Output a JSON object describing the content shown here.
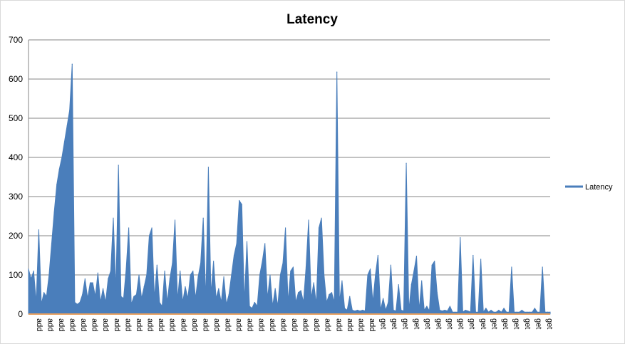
{
  "chart_data": {
    "type": "area",
    "title": "Latency",
    "xlabel": "",
    "ylabel": "",
    "ylim": [
      0,
      700
    ],
    "yticks": [
      0,
      100,
      200,
      300,
      400,
      500,
      600,
      700
    ],
    "grid": true,
    "legend_position": "right",
    "x_tick_labels": [
      "add",
      "add",
      "add",
      "add",
      "add",
      "add",
      "add",
      "add",
      "add",
      "add",
      "add",
      "add",
      "add",
      "add",
      "add",
      "add",
      "add",
      "add",
      "add",
      "add",
      "add",
      "add",
      "add",
      "add",
      "add",
      "add",
      "add",
      "add",
      "add",
      "add",
      "add",
      "get",
      "get",
      "get",
      "get",
      "get",
      "get",
      "get",
      "get",
      "get",
      "get",
      "get",
      "get",
      "get",
      "get",
      "get",
      "get"
    ],
    "series": [
      {
        "name": "Latency",
        "color": "#4a7ebb",
        "points": [
          [
            0,
            115
          ],
          [
            1,
            90
          ],
          [
            2,
            110
          ],
          [
            3,
            30
          ],
          [
            4,
            215
          ],
          [
            5,
            25
          ],
          [
            6,
            55
          ],
          [
            7,
            45
          ],
          [
            8,
            100
          ],
          [
            9,
            180
          ],
          [
            10,
            260
          ],
          [
            11,
            330
          ],
          [
            12,
            370
          ],
          [
            13,
            400
          ],
          [
            14,
            440
          ],
          [
            15,
            480
          ],
          [
            16,
            520
          ],
          [
            17,
            638
          ],
          [
            18,
            30
          ],
          [
            19,
            25
          ],
          [
            20,
            30
          ],
          [
            21,
            50
          ],
          [
            22,
            90
          ],
          [
            23,
            40
          ],
          [
            24,
            80
          ],
          [
            25,
            80
          ],
          [
            26,
            45
          ],
          [
            27,
            105
          ],
          [
            28,
            30
          ],
          [
            29,
            65
          ],
          [
            30,
            30
          ],
          [
            31,
            90
          ],
          [
            32,
            110
          ],
          [
            33,
            245
          ],
          [
            34,
            60
          ],
          [
            35,
            380
          ],
          [
            36,
            45
          ],
          [
            37,
            40
          ],
          [
            38,
            115
          ],
          [
            39,
            220
          ],
          [
            40,
            25
          ],
          [
            41,
            45
          ],
          [
            42,
            50
          ],
          [
            43,
            100
          ],
          [
            44,
            40
          ],
          [
            45,
            70
          ],
          [
            46,
            100
          ],
          [
            47,
            200
          ],
          [
            48,
            220
          ],
          [
            49,
            40
          ],
          [
            50,
            125
          ],
          [
            51,
            30
          ],
          [
            52,
            20
          ],
          [
            53,
            110
          ],
          [
            54,
            30
          ],
          [
            55,
            90
          ],
          [
            56,
            130
          ],
          [
            57,
            240
          ],
          [
            58,
            35
          ],
          [
            59,
            110
          ],
          [
            60,
            30
          ],
          [
            61,
            70
          ],
          [
            62,
            40
          ],
          [
            63,
            100
          ],
          [
            64,
            110
          ],
          [
            65,
            40
          ],
          [
            66,
            95
          ],
          [
            67,
            130
          ],
          [
            68,
            245
          ],
          [
            69,
            35
          ],
          [
            70,
            375
          ],
          [
            71,
            50
          ],
          [
            72,
            135
          ],
          [
            73,
            40
          ],
          [
            74,
            65
          ],
          [
            75,
            30
          ],
          [
            76,
            95
          ],
          [
            77,
            25
          ],
          [
            78,
            50
          ],
          [
            79,
            100
          ],
          [
            80,
            150
          ],
          [
            81,
            180
          ],
          [
            82,
            290
          ],
          [
            83,
            280
          ],
          [
            84,
            30
          ],
          [
            85,
            185
          ],
          [
            86,
            20
          ],
          [
            87,
            15
          ],
          [
            88,
            30
          ],
          [
            89,
            20
          ],
          [
            90,
            100
          ],
          [
            91,
            135
          ],
          [
            92,
            180
          ],
          [
            93,
            40
          ],
          [
            94,
            100
          ],
          [
            95,
            20
          ],
          [
            96,
            65
          ],
          [
            97,
            20
          ],
          [
            98,
            100
          ],
          [
            99,
            130
          ],
          [
            100,
            220
          ],
          [
            101,
            30
          ],
          [
            102,
            110
          ],
          [
            103,
            120
          ],
          [
            104,
            30
          ],
          [
            105,
            55
          ],
          [
            106,
            60
          ],
          [
            107,
            30
          ],
          [
            108,
            120
          ],
          [
            109,
            240
          ],
          [
            110,
            40
          ],
          [
            111,
            80
          ],
          [
            112,
            25
          ],
          [
            113,
            220
          ],
          [
            114,
            245
          ],
          [
            115,
            100
          ],
          [
            116,
            30
          ],
          [
            117,
            50
          ],
          [
            118,
            55
          ],
          [
            119,
            30
          ],
          [
            120,
            618
          ],
          [
            121,
            30
          ],
          [
            122,
            85
          ],
          [
            123,
            15
          ],
          [
            124,
            10
          ],
          [
            125,
            45
          ],
          [
            126,
            10
          ],
          [
            127,
            8
          ],
          [
            128,
            10
          ],
          [
            129,
            8
          ],
          [
            130,
            10
          ],
          [
            131,
            8
          ],
          [
            132,
            100
          ],
          [
            133,
            115
          ],
          [
            134,
            30
          ],
          [
            135,
            100
          ],
          [
            136,
            150
          ],
          [
            137,
            10
          ],
          [
            138,
            40
          ],
          [
            139,
            10
          ],
          [
            140,
            30
          ],
          [
            141,
            125
          ],
          [
            142,
            10
          ],
          [
            143,
            8
          ],
          [
            144,
            75
          ],
          [
            145,
            10
          ],
          [
            146,
            8
          ],
          [
            147,
            385
          ],
          [
            148,
            10
          ],
          [
            149,
            75
          ],
          [
            150,
            110
          ],
          [
            151,
            148
          ],
          [
            152,
            10
          ],
          [
            153,
            85
          ],
          [
            154,
            10
          ],
          [
            155,
            20
          ],
          [
            156,
            8
          ],
          [
            157,
            125
          ],
          [
            158,
            135
          ],
          [
            159,
            55
          ],
          [
            160,
            10
          ],
          [
            161,
            8
          ],
          [
            162,
            10
          ],
          [
            163,
            8
          ],
          [
            164,
            20
          ],
          [
            165,
            5
          ],
          [
            166,
            5
          ],
          [
            167,
            5
          ],
          [
            168,
            195
          ],
          [
            169,
            5
          ],
          [
            170,
            10
          ],
          [
            171,
            8
          ],
          [
            172,
            5
          ],
          [
            173,
            150
          ],
          [
            174,
            5
          ],
          [
            175,
            5
          ],
          [
            176,
            140
          ],
          [
            177,
            5
          ],
          [
            178,
            15
          ],
          [
            179,
            5
          ],
          [
            180,
            10
          ],
          [
            181,
            5
          ],
          [
            182,
            5
          ],
          [
            183,
            10
          ],
          [
            184,
            5
          ],
          [
            185,
            15
          ],
          [
            186,
            5
          ],
          [
            187,
            5
          ],
          [
            188,
            120
          ],
          [
            189,
            5
          ],
          [
            190,
            5
          ],
          [
            191,
            5
          ],
          [
            192,
            10
          ],
          [
            193,
            5
          ],
          [
            194,
            5
          ],
          [
            195,
            5
          ],
          [
            196,
            5
          ],
          [
            197,
            15
          ],
          [
            198,
            5
          ],
          [
            199,
            5
          ],
          [
            200,
            120
          ],
          [
            201,
            5
          ],
          [
            202,
            5
          ],
          [
            203,
            5
          ]
        ]
      }
    ]
  }
}
